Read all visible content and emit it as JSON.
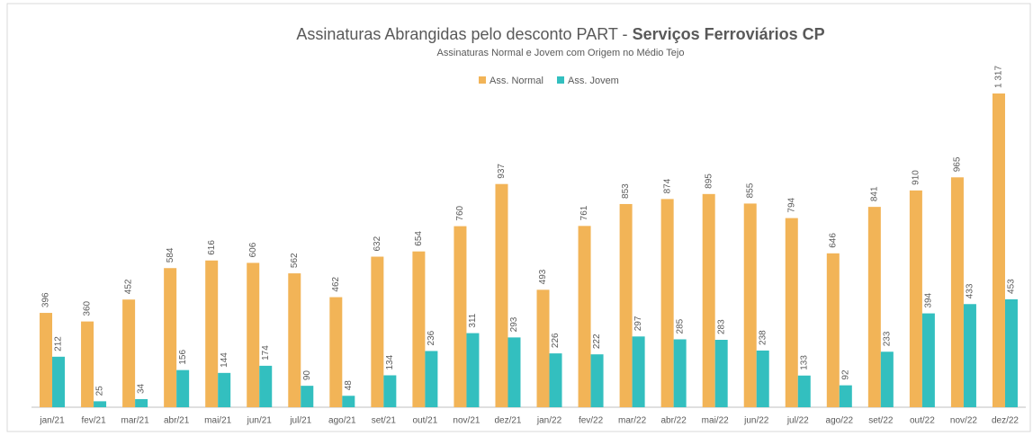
{
  "chart_data": {
    "type": "bar",
    "title": "Assinaturas Abrangidas pelo desconto PART -",
    "title_bold": "Serviços Ferroviários CP",
    "subtitle": "Assinaturas Normal e Jovem com Origem no Médio Tejo",
    "categories": [
      "jan/21",
      "fev/21",
      "mar/21",
      "abr/21",
      "mai/21",
      "jun/21",
      "jul/21",
      "ago/21",
      "set/21",
      "out/21",
      "nov/21",
      "dez/21",
      "jan/22",
      "fev/22",
      "mar/22",
      "abr/22",
      "mai/22",
      "jun/22",
      "jul/22",
      "ago/22",
      "set/22",
      "out/22",
      "nov/22",
      "dez/22"
    ],
    "series": [
      {
        "name": "Ass. Normal",
        "color": "#f2b457",
        "values": [
          396,
          360,
          452,
          584,
          616,
          606,
          562,
          462,
          632,
          654,
          760,
          937,
          493,
          761,
          853,
          874,
          895,
          855,
          794,
          646,
          841,
          910,
          965,
          1317
        ],
        "value_labels": [
          "396",
          "360",
          "452",
          "584",
          "616",
          "606",
          "562",
          "462",
          "632",
          "654",
          "760",
          "937",
          "493",
          "761",
          "853",
          "874",
          "895",
          "855",
          "794",
          "646",
          "841",
          "910",
          "965",
          "1 317"
        ]
      },
      {
        "name": "Ass. Jovem",
        "color": "#33bfbf",
        "values": [
          212,
          25,
          34,
          156,
          144,
          174,
          90,
          48,
          134,
          236,
          311,
          293,
          226,
          222,
          297,
          285,
          283,
          238,
          133,
          92,
          233,
          394,
          433,
          453
        ]
      }
    ],
    "ylim": [
      0,
      1400
    ],
    "grid": false,
    "legend": "top"
  }
}
